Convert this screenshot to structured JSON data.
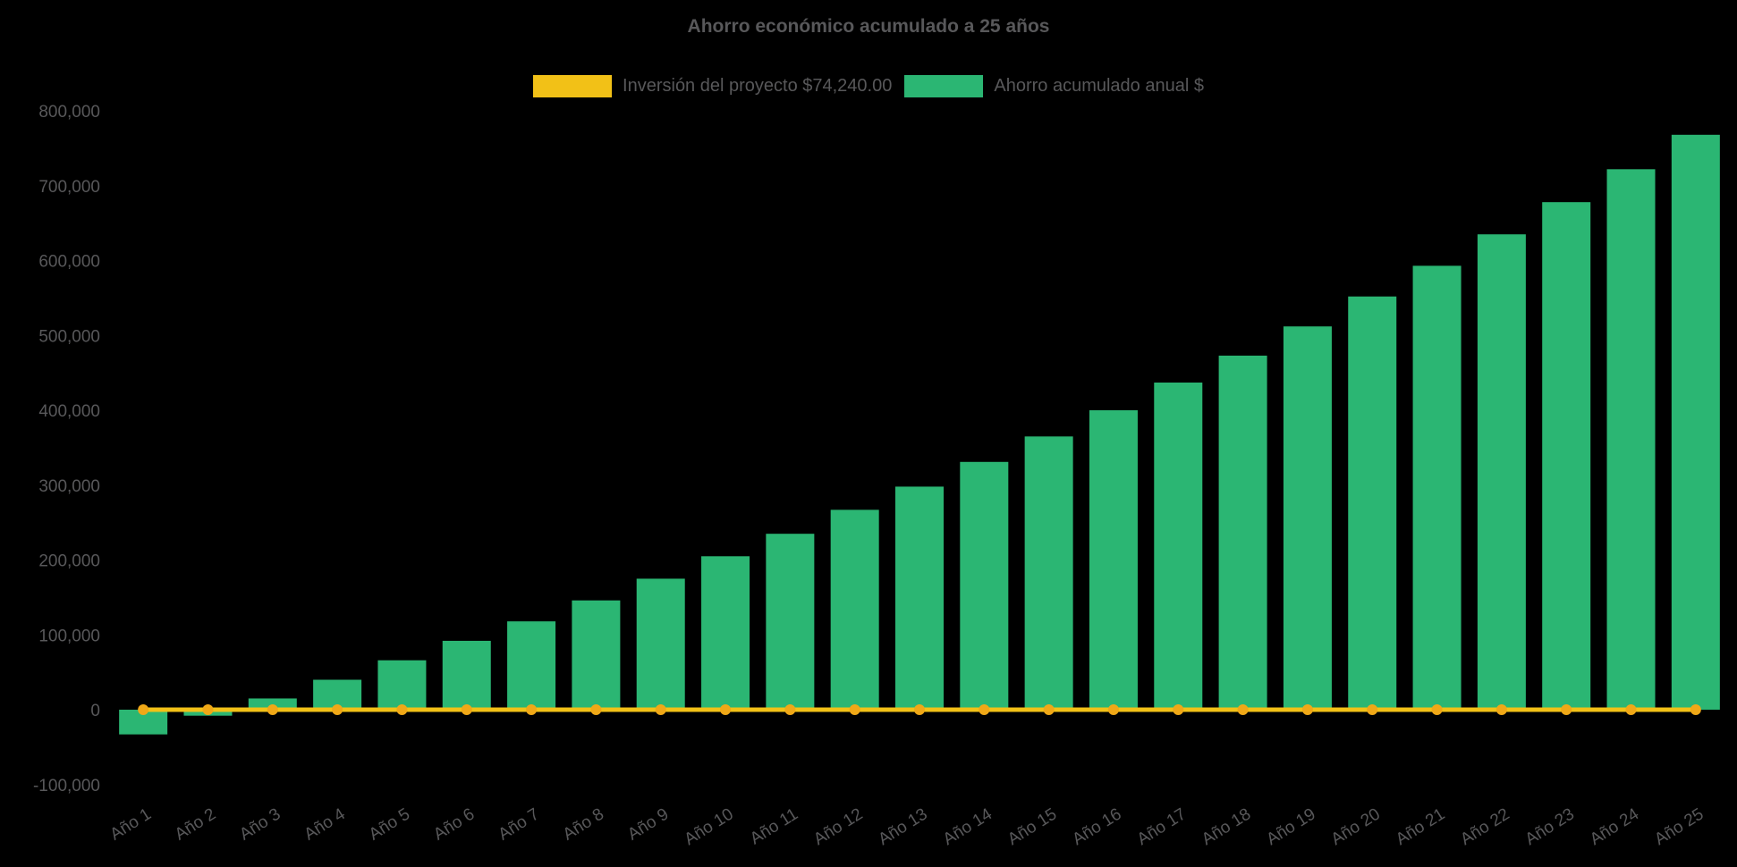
{
  "title": "Ahorro económico acumulado a 25 años",
  "colors": {
    "background": "#000000",
    "text": "#58585a",
    "bar": "#2bb673",
    "line": "#f2c117",
    "marker": "#f0a817"
  },
  "legend": {
    "items": [
      {
        "label": "Inversión del proyecto $74,240.00",
        "color": "#f2c117"
      },
      {
        "label": "Ahorro acumulado anual $",
        "color": "#2bb673"
      }
    ]
  },
  "chart_data": {
    "type": "bar",
    "title": "Ahorro económico acumulado a 25 años",
    "categories": [
      "Año 1",
      "Año 2",
      "Año 3",
      "Año 4",
      "Año 5",
      "Año 6",
      "Año 7",
      "Año 8",
      "Año 9",
      "Año 10",
      "Año 11",
      "Año 12",
      "Año 13",
      "Año 14",
      "Año 15",
      "Año 16",
      "Año 17",
      "Año 18",
      "Año 19",
      "Año 20",
      "Año 21",
      "Año 22",
      "Año 23",
      "Año 24",
      "Año 25"
    ],
    "series": [
      {
        "name": "Ahorro acumulado anual $",
        "type": "bar",
        "color": "#2bb673",
        "values": [
          -33000,
          -8000,
          15000,
          40000,
          66000,
          92000,
          118000,
          146000,
          175000,
          205000,
          235000,
          267000,
          298000,
          331000,
          365000,
          400000,
          437000,
          473000,
          512000,
          552000,
          593000,
          635000,
          678000,
          722000,
          768000
        ]
      },
      {
        "name": "Inversión del proyecto $74,240.00",
        "type": "line",
        "color": "#f2c117",
        "marker_color": "#f0a817",
        "values": [
          0,
          0,
          0,
          0,
          0,
          0,
          0,
          0,
          0,
          0,
          0,
          0,
          0,
          0,
          0,
          0,
          0,
          0,
          0,
          0,
          0,
          0,
          0,
          0,
          0
        ]
      }
    ],
    "ylim": [
      -100000,
      800000
    ],
    "yticks": [
      -100000,
      0,
      100000,
      200000,
      300000,
      400000,
      500000,
      600000,
      700000,
      800000
    ],
    "x_tick_rotation": -32,
    "grid": false,
    "legend_position": "top"
  }
}
